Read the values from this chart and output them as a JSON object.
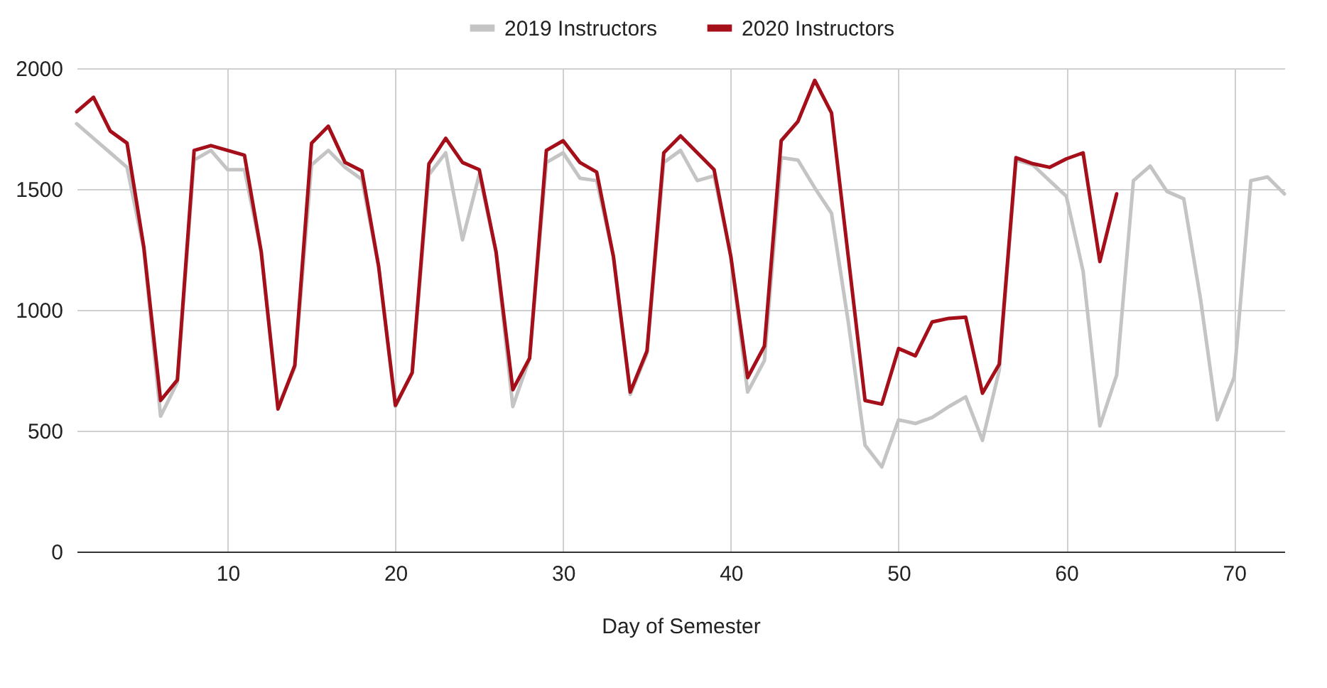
{
  "chart_data": {
    "type": "line",
    "xlabel": "Day of Semester",
    "x": [
      1,
      2,
      3,
      4,
      5,
      6,
      7,
      8,
      9,
      10,
      11,
      12,
      13,
      14,
      15,
      16,
      17,
      18,
      19,
      20,
      21,
      22,
      23,
      24,
      25,
      26,
      27,
      28,
      29,
      30,
      31,
      32,
      33,
      34,
      35,
      36,
      37,
      38,
      39,
      40,
      41,
      42,
      43,
      44,
      45,
      46,
      47,
      48,
      49,
      50,
      51,
      52,
      53,
      54,
      55,
      56,
      57,
      58,
      59,
      60,
      61,
      62,
      63,
      64,
      65,
      66,
      67,
      68,
      69,
      70,
      71,
      72,
      73
    ],
    "xlim": [
      1,
      73
    ],
    "xticks": [
      10,
      20,
      30,
      40,
      50,
      60,
      70
    ],
    "ylim": [
      0,
      2000
    ],
    "yticks": [
      0,
      500,
      1000,
      1500,
      2000
    ],
    "grid": true,
    "legend": "top",
    "marker": "none",
    "line_style": "solid",
    "series": [
      {
        "name": "2019 Instructors",
        "color": "#c4c4c4",
        "values": [
          1770,
          1710,
          1650,
          1590,
          1250,
          560,
          700,
          1620,
          1660,
          1580,
          1580,
          1240,
          600,
          760,
          1600,
          1660,
          1590,
          1540,
          1180,
          600,
          740,
          1560,
          1650,
          1290,
          1560,
          1240,
          600,
          800,
          1610,
          1650,
          1545,
          1535,
          1220,
          650,
          820,
          1610,
          1660,
          1535,
          1555,
          1220,
          660,
          790,
          1630,
          1620,
          1505,
          1400,
          950,
          440,
          350,
          545,
          530,
          555,
          600,
          640,
          460,
          750,
          1620,
          1600,
          1535,
          1470,
          1160,
          520,
          730,
          1535,
          1595,
          1490,
          1460,
          1045,
          545,
          720,
          1535,
          1550,
          1480
        ]
      },
      {
        "name": "2020 Instructors",
        "color": "#a50f1a",
        "values": [
          1820,
          1880,
          1740,
          1690,
          1260,
          625,
          710,
          1660,
          1680,
          1660,
          1640,
          1240,
          590,
          770,
          1690,
          1760,
          1610,
          1575,
          1180,
          605,
          740,
          1605,
          1710,
          1610,
          1580,
          1240,
          670,
          800,
          1660,
          1700,
          1610,
          1570,
          1220,
          660,
          830,
          1650,
          1720,
          1650,
          1580,
          1220,
          720,
          850,
          1700,
          1780,
          1950,
          1815,
          1220,
          625,
          610,
          840,
          810,
          950,
          965,
          970,
          655,
          775,
          1630,
          1605,
          1590,
          1625,
          1650,
          1200,
          1480,
          null,
          null,
          null,
          null,
          null,
          null,
          null,
          null,
          null,
          null
        ]
      }
    ]
  }
}
